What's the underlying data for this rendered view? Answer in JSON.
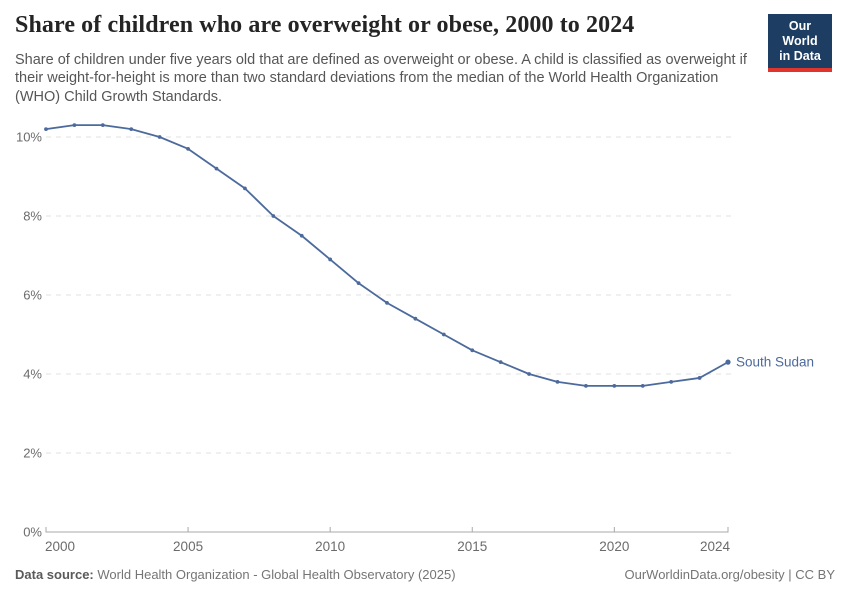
{
  "header": {
    "title": "Share of children who are overweight or obese, 2000 to 2024",
    "subtitle": "Share of children under five years old that are defined as overweight or obese. A child is classified as overweight if their weight-for-height is more than two standard deviations from the median of the World Health Organization (WHO) Child Growth Standards.",
    "logo": {
      "line1": "Our World",
      "line2": "in Data",
      "bg_color": "#1d3d63",
      "stripe_color": "#e0352c"
    }
  },
  "chart_data": {
    "type": "line",
    "title": "Share of children who are overweight or obese, 2000 to 2024",
    "x": [
      2000,
      2001,
      2002,
      2003,
      2004,
      2005,
      2006,
      2007,
      2008,
      2009,
      2010,
      2011,
      2012,
      2013,
      2014,
      2015,
      2016,
      2017,
      2018,
      2019,
      2020,
      2021,
      2022,
      2023,
      2024
    ],
    "series": [
      {
        "name": "South Sudan",
        "color": "#4c6a9c",
        "values": [
          10.2,
          10.3,
          10.3,
          10.2,
          10.0,
          9.7,
          9.2,
          8.7,
          8.0,
          7.5,
          6.9,
          6.3,
          5.8,
          5.4,
          5.0,
          4.6,
          4.3,
          4.0,
          3.8,
          3.7,
          3.7,
          3.7,
          3.8,
          3.9,
          4.3
        ]
      }
    ],
    "xlabel": "",
    "ylabel": "",
    "xlim": [
      2000,
      2024
    ],
    "ylim": [
      0,
      10.65
    ],
    "x_tick_values": [
      2000,
      2005,
      2010,
      2015,
      2020,
      2024
    ],
    "x_tick_labels": [
      "2000",
      "2005",
      "2010",
      "2015",
      "2020",
      "2024"
    ],
    "y_tick_values": [
      0,
      2,
      4,
      6,
      8,
      10
    ],
    "y_tick_labels": [
      "0%",
      "2%",
      "4%",
      "6%",
      "8%",
      "10%"
    ],
    "grid": "horizontal-dashed",
    "legend_position": "end-of-line-label",
    "colors": {
      "gridline": "#e0e0e0",
      "axis": "#a8a8a8",
      "tick_text": "#6b6b6b"
    }
  },
  "footer": {
    "datasource_label": "Data source:",
    "datasource_text": "World Health Organization - Global Health Observatory (2025)",
    "license_text": "OurWorldinData.org/obesity | CC BY"
  }
}
